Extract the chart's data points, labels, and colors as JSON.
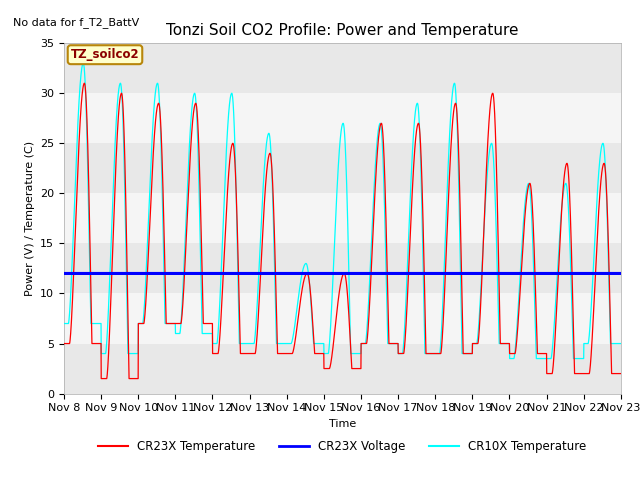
{
  "title": "Tonzi Soil CO2 Profile: Power and Temperature",
  "no_data_text": "No data for f_T2_BattV",
  "ylabel": "Power (V) / Temperature (C)",
  "xlabel": "Time",
  "ylim": [
    0,
    35
  ],
  "xlim": [
    0,
    15
  ],
  "yticks": [
    0,
    5,
    10,
    15,
    20,
    25,
    30,
    35
  ],
  "xtick_labels": [
    "Nov 8",
    "Nov 9",
    "Nov 10",
    "Nov 11",
    "Nov 12",
    "Nov 13",
    "Nov 14",
    "Nov 15",
    "Nov 16",
    "Nov 17",
    "Nov 18",
    "Nov 19",
    "Nov 20",
    "Nov 21",
    "Nov 22",
    "Nov 23"
  ],
  "legend_entries": [
    "CR23X Temperature",
    "CR23X Voltage",
    "CR10X Temperature"
  ],
  "box_label": "TZ_soilco2",
  "voltage_value": 12.0,
  "plot_bg_color": "#ffffff",
  "band_colors": [
    "#e8e8e8",
    "#f5f5f5"
  ],
  "title_fontsize": 11,
  "label_fontsize": 8,
  "tick_fontsize": 8,
  "day_peaks_red": [
    31,
    30,
    29,
    29,
    25,
    24,
    12,
    12,
    27,
    27,
    29,
    30,
    21,
    23,
    23
  ],
  "day_peaks_cyan": [
    33,
    31,
    31,
    30,
    30,
    26,
    13,
    27,
    27,
    29,
    31,
    25,
    21,
    21,
    25
  ],
  "day_valleys_red": [
    5,
    1.5,
    7,
    7,
    4,
    4,
    4,
    2.5,
    5,
    4,
    4,
    5,
    4,
    2,
    2
  ],
  "day_valleys_cyan": [
    7,
    4,
    7,
    6,
    5,
    5,
    5,
    4,
    5,
    4,
    4,
    5,
    3.5,
    3.5,
    5
  ]
}
